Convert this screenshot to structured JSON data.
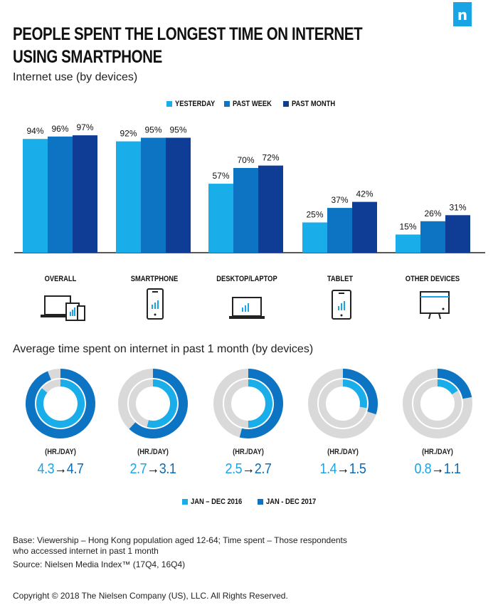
{
  "brand": {
    "logo_letter": "n",
    "logo_color": "#19a4e6"
  },
  "title_line1": "PEOPLE SPENT THE LONGEST TIME ON INTERNET",
  "title_line2": "USING SMARTPHONE",
  "colors": {
    "yesterday": "#19aeea",
    "past_week": "#0c74c2",
    "past_month": "#0f3c94",
    "ring_bg": "#d9d9d9",
    "y2016": "#19aeea",
    "y2017": "#0c74c2"
  },
  "chart_data": [
    {
      "type": "bar",
      "title": "Internet use (by devices)",
      "categories": [
        "OVERALL",
        "SMARTPHONE",
        "DESKTOP/LAPTOP",
        "TABLET",
        "OTHER DEVICES"
      ],
      "series": [
        {
          "name": "YESTERDAY",
          "values": [
            94,
            92,
            57,
            25,
            15
          ]
        },
        {
          "name": "PAST WEEK",
          "values": [
            96,
            95,
            70,
            37,
            26
          ]
        },
        {
          "name": "PAST MONTH",
          "values": [
            97,
            95,
            72,
            42,
            31
          ]
        }
      ],
      "value_suffix": "%",
      "ylim": [
        0,
        100
      ],
      "legend_position": "top-center",
      "grid": false,
      "icons": [
        "devices-icon",
        "smartphone-icon",
        "laptop-icon",
        "tablet-icon",
        "monitor-icon"
      ]
    },
    {
      "type": "pie",
      "title": "Average time spent on internet in past 1 month (by devices)",
      "unit_label": "(HR./DAY)",
      "max_hours": 5,
      "categories": [
        "OVERALL",
        "SMARTPHONE",
        "DESKTOP/LAPTOP",
        "TABLET",
        "OTHER DEVICES"
      ],
      "series": [
        {
          "name": "JAN – DEC 2016",
          "values": [
            4.3,
            2.7,
            2.5,
            1.4,
            0.8
          ]
        },
        {
          "name": "JAN - DEC 2017",
          "values": [
            4.7,
            3.1,
            2.7,
            1.5,
            1.1
          ]
        }
      ],
      "value_labels_2016": [
        "4.3",
        "2.7",
        "2.5",
        "1.4",
        "0.8"
      ],
      "value_labels_2017": [
        "4.7",
        "3.1",
        "2.7",
        "1.5",
        "1.1"
      ],
      "arrow": "→"
    }
  ],
  "legend1": [
    "YESTERDAY",
    "PAST WEEK",
    "PAST MONTH"
  ],
  "legend2": [
    "JAN – DEC 2016",
    "JAN - DEC 2017"
  ],
  "notes": {
    "base_line1": "Base: Viewership – Hong Kong population aged 12-64; Time spent – Those respondents",
    "base_line2": "who accessed internet in past 1 month",
    "source": "Source: Nielsen Media Index™ (17Q4, 16Q4)",
    "copyright": "Copyright © 2018 The Nielsen Company (US), LLC. All Rights Reserved."
  }
}
